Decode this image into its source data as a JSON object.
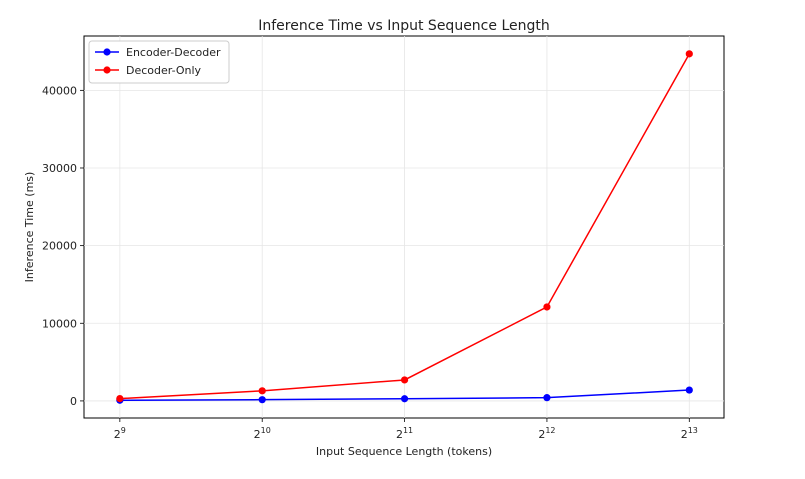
{
  "chart_data": {
    "type": "line",
    "title": "Inference Time vs Input Sequence Length",
    "xlabel": "Input Sequence Length (tokens)",
    "ylabel": "Inference Time (ms)",
    "x_scale": "log2",
    "x": [
      512,
      1024,
      2048,
      4096,
      8192
    ],
    "x_tick_labels": [
      {
        "base": "2",
        "exp": "9"
      },
      {
        "base": "2",
        "exp": "10"
      },
      {
        "base": "2",
        "exp": "11"
      },
      {
        "base": "2",
        "exp": "12"
      },
      {
        "base": "2",
        "exp": "13"
      }
    ],
    "xlim": [
      430,
      9700
    ],
    "ylim": [
      -2200,
      47000
    ],
    "y_ticks": [
      0,
      10000,
      20000,
      30000,
      40000
    ],
    "y_tick_labels": [
      "0",
      "10000",
      "20000",
      "30000",
      "40000"
    ],
    "grid": true,
    "legend_position": "top-left",
    "series": [
      {
        "name": "Encoder-Decoder",
        "color": "#0000ff",
        "values": [
          90,
          160,
          280,
          420,
          1400
        ]
      },
      {
        "name": "Decoder-Only",
        "color": "#ff0000",
        "values": [
          300,
          1300,
          2700,
          12100,
          44700
        ]
      }
    ]
  }
}
